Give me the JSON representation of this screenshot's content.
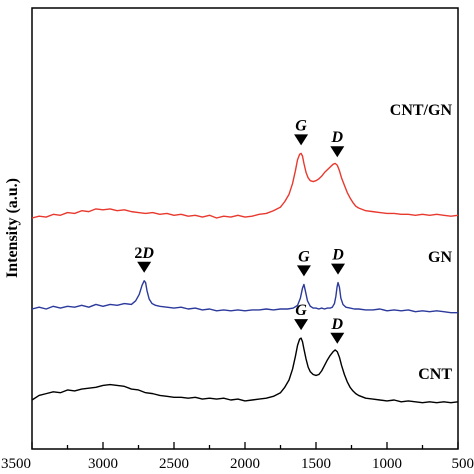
{
  "chart_data": {
    "type": "line",
    "xlabel": "",
    "ylabel": "Intensity (a.u.)",
    "xlim": [
      3500,
      500
    ],
    "x_reversed": true,
    "x_ticks": [
      3500,
      3000,
      2500,
      2000,
      1500,
      1000,
      500
    ],
    "y_ticks_shown": false,
    "grid": false,
    "legend": "none",
    "series": [
      {
        "name": "CNT/GN",
        "color": "#e8392f",
        "label_position": "right",
        "offset": 2.0,
        "x": [
          3500,
          3450,
          3400,
          3350,
          3300,
          3250,
          3200,
          3150,
          3100,
          3050,
          3000,
          2950,
          2900,
          2850,
          2800,
          2750,
          2700,
          2650,
          2600,
          2550,
          2500,
          2450,
          2400,
          2350,
          2300,
          2250,
          2200,
          2150,
          2100,
          2050,
          2000,
          1950,
          1900,
          1850,
          1800,
          1750,
          1720,
          1690,
          1665,
          1645,
          1630,
          1615,
          1605,
          1595,
          1585,
          1570,
          1555,
          1540,
          1520,
          1500,
          1480,
          1460,
          1440,
          1420,
          1400,
          1380,
          1365,
          1350,
          1335,
          1320,
          1300,
          1280,
          1260,
          1240,
          1220,
          1200,
          1150,
          1100,
          1050,
          1000,
          950,
          900,
          850,
          800,
          750,
          700,
          650,
          600,
          550,
          500
        ],
        "y": [
          0.0,
          0.02,
          0.01,
          0.04,
          0.03,
          0.06,
          0.05,
          0.08,
          0.07,
          0.1,
          0.09,
          0.1,
          0.08,
          0.09,
          0.07,
          0.06,
          0.05,
          0.06,
          0.04,
          0.05,
          0.03,
          0.04,
          0.02,
          0.03,
          0.01,
          0.03,
          0.0,
          0.02,
          0.01,
          0.03,
          0.01,
          0.02,
          0.04,
          0.05,
          0.08,
          0.12,
          0.18,
          0.26,
          0.38,
          0.52,
          0.64,
          0.7,
          0.71,
          0.68,
          0.6,
          0.5,
          0.44,
          0.41,
          0.4,
          0.41,
          0.43,
          0.46,
          0.5,
          0.53,
          0.56,
          0.59,
          0.6,
          0.58,
          0.52,
          0.44,
          0.36,
          0.28,
          0.22,
          0.17,
          0.13,
          0.11,
          0.08,
          0.07,
          0.06,
          0.05,
          0.05,
          0.04,
          0.04,
          0.03,
          0.04,
          0.03,
          0.04,
          0.03,
          0.02,
          0.03
        ]
      },
      {
        "name": "GN",
        "color": "#2c3a9c",
        "label_position": "right",
        "offset": 1.0,
        "x": [
          3500,
          3450,
          3400,
          3350,
          3300,
          3250,
          3200,
          3150,
          3100,
          3050,
          3000,
          2950,
          2900,
          2850,
          2800,
          2770,
          2745,
          2725,
          2710,
          2700,
          2690,
          2675,
          2655,
          2630,
          2600,
          2550,
          2500,
          2450,
          2400,
          2350,
          2300,
          2250,
          2200,
          2150,
          2100,
          2050,
          2000,
          1950,
          1900,
          1850,
          1800,
          1750,
          1700,
          1660,
          1630,
          1610,
          1595,
          1585,
          1575,
          1560,
          1540,
          1520,
          1500,
          1480,
          1460,
          1440,
          1420,
          1400,
          1385,
          1370,
          1360,
          1352,
          1345,
          1335,
          1325,
          1310,
          1290,
          1260,
          1230,
          1200,
          1150,
          1100,
          1050,
          1000,
          950,
          900,
          850,
          800,
          750,
          700,
          650,
          600,
          550,
          500
        ],
        "y": [
          0.0,
          0.02,
          0.0,
          0.03,
          0.01,
          0.03,
          0.02,
          0.04,
          0.02,
          0.05,
          0.03,
          0.05,
          0.04,
          0.06,
          0.05,
          0.09,
          0.16,
          0.26,
          0.31,
          0.29,
          0.2,
          0.11,
          0.06,
          0.04,
          0.03,
          0.02,
          0.01,
          0.02,
          0.0,
          0.01,
          -0.01,
          0.0,
          -0.02,
          -0.01,
          -0.02,
          -0.01,
          -0.02,
          -0.01,
          -0.01,
          0.0,
          -0.01,
          0.0,
          0.0,
          0.01,
          0.04,
          0.12,
          0.23,
          0.27,
          0.2,
          0.09,
          0.03,
          0.01,
          0.01,
          0.0,
          0.01,
          0.0,
          0.01,
          0.01,
          0.02,
          0.06,
          0.14,
          0.24,
          0.29,
          0.24,
          0.12,
          0.05,
          0.02,
          0.01,
          0.0,
          0.0,
          -0.01,
          -0.01,
          0.0,
          -0.02,
          -0.01,
          -0.02,
          -0.01,
          -0.03,
          -0.02,
          -0.03,
          -0.02,
          -0.03,
          -0.04,
          -0.04
        ]
      },
      {
        "name": "CNT",
        "color": "#000000",
        "label_position": "right",
        "offset": 0.0,
        "x": [
          3500,
          3450,
          3400,
          3350,
          3300,
          3250,
          3200,
          3150,
          3100,
          3050,
          3000,
          2950,
          2900,
          2850,
          2800,
          2750,
          2700,
          2650,
          2600,
          2550,
          2500,
          2450,
          2400,
          2350,
          2300,
          2250,
          2200,
          2150,
          2100,
          2050,
          2000,
          1950,
          1900,
          1850,
          1800,
          1750,
          1720,
          1690,
          1665,
          1645,
          1630,
          1615,
          1605,
          1595,
          1585,
          1570,
          1555,
          1540,
          1520,
          1500,
          1480,
          1460,
          1440,
          1420,
          1400,
          1380,
          1365,
          1350,
          1335,
          1320,
          1300,
          1280,
          1260,
          1240,
          1220,
          1200,
          1150,
          1100,
          1050,
          1000,
          950,
          900,
          850,
          800,
          750,
          700,
          650,
          600,
          550,
          500
        ],
        "y": [
          0.0,
          0.05,
          0.07,
          0.09,
          0.08,
          0.11,
          0.1,
          0.12,
          0.13,
          0.14,
          0.16,
          0.17,
          0.16,
          0.15,
          0.12,
          0.11,
          0.08,
          0.07,
          0.05,
          0.04,
          0.03,
          0.03,
          0.02,
          0.03,
          0.01,
          0.02,
          0.01,
          0.02,
          0.0,
          0.01,
          -0.01,
          0.0,
          0.01,
          0.02,
          0.04,
          0.08,
          0.14,
          0.22,
          0.34,
          0.48,
          0.6,
          0.67,
          0.68,
          0.64,
          0.56,
          0.45,
          0.36,
          0.31,
          0.28,
          0.27,
          0.28,
          0.32,
          0.38,
          0.44,
          0.49,
          0.53,
          0.55,
          0.53,
          0.47,
          0.38,
          0.28,
          0.2,
          0.14,
          0.1,
          0.07,
          0.05,
          0.02,
          0.01,
          0.0,
          -0.01,
          0.0,
          -0.02,
          -0.01,
          -0.02,
          -0.03,
          -0.02,
          -0.03,
          -0.02,
          -0.03,
          -0.02
        ]
      }
    ],
    "annotations": [
      {
        "series": "CNT/GN",
        "text_italic": "G",
        "text_upright": "",
        "x": 1605
      },
      {
        "series": "CNT/GN",
        "text_italic": "D",
        "text_upright": "",
        "x": 1350
      },
      {
        "series": "GN",
        "text_upright": "2",
        "text_italic": "D",
        "x": 2710
      },
      {
        "series": "GN",
        "text_italic": "G",
        "text_upright": "",
        "x": 1585
      },
      {
        "series": "GN",
        "text_italic": "D",
        "text_upright": "",
        "x": 1345
      },
      {
        "series": "CNT",
        "text_italic": "G",
        "text_upright": "",
        "x": 1605
      },
      {
        "series": "CNT",
        "text_italic": "D",
        "text_upright": "",
        "x": 1350
      }
    ]
  }
}
